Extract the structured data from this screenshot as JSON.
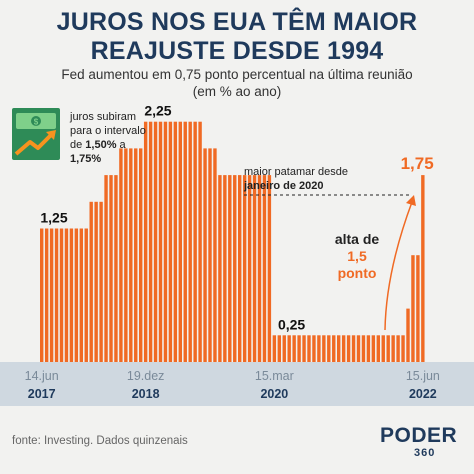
{
  "title_line1": "JUROS NOS EUA TÊM MAIOR",
  "title_line2": "REAJUSTE DESDE 1994",
  "subtitle_line1": "Fed aumentou em 0,75 ponto percentual na última reunião",
  "subtitle_line2": "(em % ao ano)",
  "note": {
    "l1": "juros subiram",
    "l2": "para o intervalo",
    "l3a": "de ",
    "l3b": "1,50%",
    "l3c": " a",
    "l4": "1,75%"
  },
  "callout_high": {
    "l1": "maior patamar desde",
    "l2": "janeiro de 2020"
  },
  "callout_rise": {
    "l1": "alta de",
    "l2": "1,5",
    "l3": "ponto"
  },
  "source": "fonte: Investing. Dados quinzenais",
  "logo": {
    "main": "PODER",
    "sub": "360"
  },
  "colors": {
    "bar": "#f06a24",
    "title": "#1f3a5c",
    "axis_band": "#cfd8e0",
    "background": "#f2f2f0"
  },
  "icons": [
    "money-trend-icon"
  ],
  "chart_data": {
    "type": "bar",
    "title": "",
    "xlabel": "",
    "ylabel": "",
    "ylim": [
      0,
      2.5
    ],
    "x_ticks": [
      {
        "date": "14.jun",
        "year": "2017",
        "index": 0
      },
      {
        "date": "19.dez",
        "year": "2018",
        "index": 21
      },
      {
        "date": "15.mar",
        "year": "2020",
        "index": 47
      },
      {
        "date": "15.jun",
        "year": "2022",
        "index": 77
      }
    ],
    "value_labels": [
      {
        "text": "1,25",
        "index": 0
      },
      {
        "text": "2,25",
        "index": 21
      },
      {
        "text": "0,25",
        "index": 48
      },
      {
        "text": "1,75",
        "index": 77
      }
    ],
    "values": [
      1.25,
      1.25,
      1.25,
      1.25,
      1.25,
      1.25,
      1.25,
      1.25,
      1.25,
      1.25,
      1.5,
      1.5,
      1.5,
      1.75,
      1.75,
      1.75,
      2.0,
      2.0,
      2.0,
      2.0,
      2.0,
      2.25,
      2.25,
      2.25,
      2.25,
      2.25,
      2.25,
      2.25,
      2.25,
      2.25,
      2.25,
      2.25,
      2.25,
      2.0,
      2.0,
      2.0,
      1.75,
      1.75,
      1.75,
      1.75,
      1.75,
      1.75,
      1.75,
      1.75,
      1.75,
      1.75,
      1.75,
      0.25,
      0.25,
      0.25,
      0.25,
      0.25,
      0.25,
      0.25,
      0.25,
      0.25,
      0.25,
      0.25,
      0.25,
      0.25,
      0.25,
      0.25,
      0.25,
      0.25,
      0.25,
      0.25,
      0.25,
      0.25,
      0.25,
      0.25,
      0.25,
      0.25,
      0.25,
      0.25,
      0.5,
      1.0,
      1.0,
      1.75
    ]
  }
}
